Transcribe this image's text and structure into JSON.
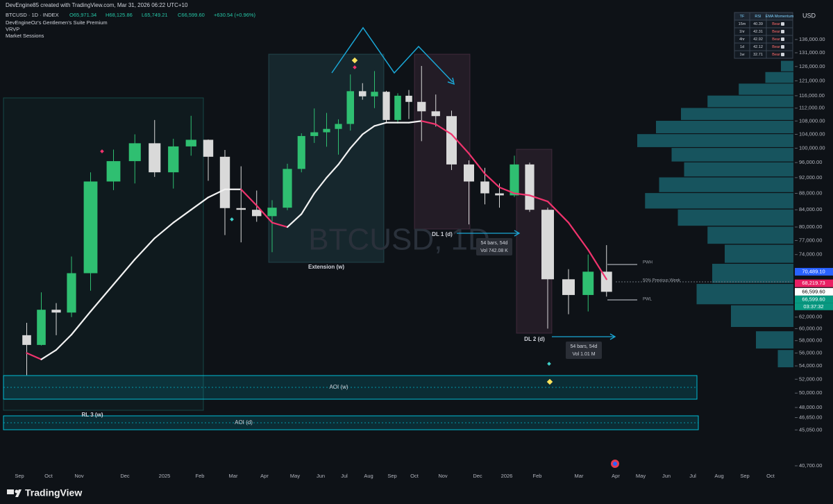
{
  "header": {
    "credit": "DevEngine85 created with TradingView.com, Mar 31, 2026 06:22 UTC+10",
    "symbol": "BTCUSD · 1D · INDEX",
    "ohlc": [
      "O65,971.34",
      "H68,125.86",
      "L65,749.21",
      "C66,599.60",
      "+630.54 (+0.96%)"
    ],
    "indicators": [
      "DevEngineOz's Gentlemen's Suite Premium",
      "VRVP",
      "Market Sessions"
    ]
  },
  "chart_data": {
    "type": "candlestick",
    "watermark": "BTCUSD, 1D",
    "currency": "USD",
    "categories": [
      "Sep",
      null,
      "Oct",
      null,
      "Nov",
      null,
      "Dec",
      null,
      "2025",
      null,
      "Feb",
      null,
      "Mar",
      null,
      "Apr",
      null,
      "May",
      null,
      "Jun",
      null,
      "Jul",
      null,
      "Aug",
      null,
      "Sep",
      null,
      "Oct",
      null,
      "Nov",
      null,
      "Dec",
      null,
      "2026",
      null,
      "Feb",
      null,
      "Mar",
      null,
      "Apr",
      null,
      "May",
      null,
      "Jun",
      null,
      "Jul",
      null,
      "Aug",
      null,
      "Sep",
      null,
      "Oct",
      null
    ],
    "open": [
      58900,
      57300,
      63300,
      62800,
      70200,
      91000,
      96400,
      101400,
      93400,
      100500,
      102400,
      97600,
      84400,
      84000,
      82500,
      84500,
      94300,
      103500,
      104600,
      105600,
      107100,
      117500,
      115800,
      117300,
      108300,
      116000,
      114000,
      111000,
      109500,
      95500,
      91000,
      88000,
      87500,
      95500,
      84000,
      69000,
      66000,
      70500,
      null,
      null,
      null,
      null,
      null,
      null,
      null,
      null,
      null,
      null,
      null,
      null,
      null,
      null
    ],
    "high": [
      61000,
      66500,
      64500,
      73600,
      93400,
      99600,
      104000,
      108300,
      102700,
      109600,
      102500,
      99500,
      95000,
      88700,
      86300,
      95700,
      104300,
      111900,
      110500,
      108500,
      123200,
      120200,
      124400,
      117600,
      116800,
      117900,
      126200,
      116400,
      111200,
      96600,
      94600,
      90500,
      97900,
      96000,
      84500,
      71000,
      74000,
      76000,
      null,
      null,
      null,
      null,
      null,
      null,
      null,
      null,
      null,
      null,
      null,
      null,
      null,
      null
    ],
    "low": [
      52600,
      57200,
      58900,
      62000,
      66800,
      88800,
      90500,
      92200,
      89200,
      97900,
      91200,
      78200,
      76600,
      81200,
      74500,
      83900,
      93400,
      101500,
      100400,
      98200,
      105100,
      114700,
      112000,
      107300,
      107300,
      108600,
      102000,
      106300,
      94000,
      80600,
      85300,
      84500,
      87100,
      83500,
      60000,
      62500,
      63000,
      65700,
      null,
      null,
      null,
      null,
      null,
      null,
      null,
      null,
      null,
      null,
      null,
      null,
      null,
      null
    ],
    "close": [
      57300,
      63300,
      62800,
      70200,
      91000,
      96400,
      101400,
      93400,
      100500,
      102400,
      97600,
      84400,
      84000,
      82500,
      84500,
      94300,
      103500,
      104600,
      105600,
      107100,
      117500,
      115800,
      117300,
      108300,
      116000,
      114000,
      111000,
      109500,
      95500,
      91000,
      88000,
      87500,
      95500,
      84000,
      69000,
      66000,
      70500,
      66599.6,
      null,
      null,
      null,
      null,
      null,
      null,
      null,
      null,
      null,
      null,
      null,
      null,
      null,
      null
    ],
    "up_color": "#2fbf71",
    "down_color": "#d9d9d9",
    "ema": [
      56000,
      55000,
      56500,
      59000,
      63000,
      68000,
      73000,
      77500,
      81000,
      84000,
      87000,
      89000,
      89000,
      85000,
      81000,
      80000,
      83000,
      88000,
      92000,
      95500,
      100000,
      104000,
      106500,
      107500,
      107500,
      107500,
      108000,
      107000,
      104000,
      98500,
      93000,
      89500,
      88000,
      87500,
      86000,
      81000,
      75000,
      69000,
      null,
      null,
      null,
      null,
      null,
      null,
      null,
      null,
      null,
      null,
      null,
      null,
      null,
      null
    ],
    "ema_rising_color": "#f2f2f2",
    "ema_falling_color": "#f0336d",
    "log_scale": true,
    "ylim": [
      40300,
      152100
    ],
    "yticks": [
      {
        "value": 136000,
        "label": "136,000.00"
      },
      {
        "value": 131000,
        "label": "131,000.00"
      },
      {
        "value": 126000,
        "label": "126,000.00"
      },
      {
        "value": 121000,
        "label": "121,000.00"
      },
      {
        "value": 116000,
        "label": "116,000.00"
      },
      {
        "value": 112000,
        "label": "112,000.00"
      },
      {
        "value": 108000,
        "label": "108,000.00"
      },
      {
        "value": 104000,
        "label": "104,000.00"
      },
      {
        "value": 100000,
        "label": "100,000.00"
      },
      {
        "value": 96000,
        "label": "96,000.00"
      },
      {
        "value": 92000,
        "label": "92,000.00"
      },
      {
        "value": 88000,
        "label": "88,000.00"
      },
      {
        "value": 84000,
        "label": "84,000.00"
      },
      {
        "value": 80000,
        "label": "80,000.00"
      },
      {
        "value": 77000,
        "label": "77,000.00"
      },
      {
        "value": 74000,
        "label": "74,000.00"
      },
      {
        "value": 62000,
        "label": "62,000.00"
      },
      {
        "value": 60000,
        "label": "60,000.00"
      },
      {
        "value": 58000,
        "label": "58,000.00"
      },
      {
        "value": 56000,
        "label": "56,000.00"
      },
      {
        "value": 54000,
        "label": "54,000.00"
      },
      {
        "value": 52000,
        "label": "52,000.00"
      },
      {
        "value": 50000,
        "label": "50,000.00"
      },
      {
        "value": 48000,
        "label": "48,000.00"
      },
      {
        "value": 46650,
        "label": "46,650.00"
      },
      {
        "value": 45050,
        "label": "45,050.00"
      },
      {
        "value": 40700,
        "label": "40,700.00"
      }
    ],
    "price_tags": [
      {
        "value": 70489.1,
        "label": "70,489.10",
        "color": "#2962ff"
      },
      {
        "value": 68219.73,
        "label": "68,219.73",
        "color": "#e91e63"
      },
      {
        "value": 66599.6,
        "label": "66,599.60",
        "color": "#ffffff"
      },
      {
        "value": 66599.6,
        "label": "66,599.60",
        "color": "#089981"
      }
    ],
    "countdown": "03:37:32",
    "volume_profile": {
      "color": "#1f8a99",
      "prices": [
        126000,
        122000,
        118000,
        114000,
        110000,
        106000,
        102000,
        98000,
        94000,
        90000,
        86000,
        82000,
        78000,
        74000,
        70000,
        66000,
        62000,
        58000,
        55000
      ],
      "values": [
        8,
        18,
        35,
        55,
        72,
        88,
        100,
        78,
        70,
        86,
        95,
        74,
        55,
        44,
        52,
        62,
        40,
        24,
        10
      ]
    },
    "zones": [
      "RL 3 (w)",
      "Extension (w)",
      "DL 1 (d)",
      "DL 2 (d)",
      "AOI (w)",
      "AOI (d)"
    ],
    "measures": [
      [
        "54 bars, 54d",
        "Vol 742.08 K"
      ],
      [
        "54 bars, 54d",
        "Vol 1.01 M"
      ]
    ],
    "levels": [
      "PWH",
      "50% Previous Week",
      "PWL"
    ]
  },
  "rsi_table": {
    "headers": [
      "TF",
      "RSI",
      "EMA Momentum"
    ],
    "rows": [
      [
        "15m",
        40.39,
        "Bear"
      ],
      [
        "1hr",
        42.31,
        "Bear"
      ],
      [
        "4hr",
        42.92,
        "Bear"
      ],
      [
        "1d",
        42.12,
        "Bear"
      ],
      [
        "1w",
        32.71,
        "Bear"
      ]
    ]
  },
  "footer": {
    "brand": "TradingView"
  }
}
